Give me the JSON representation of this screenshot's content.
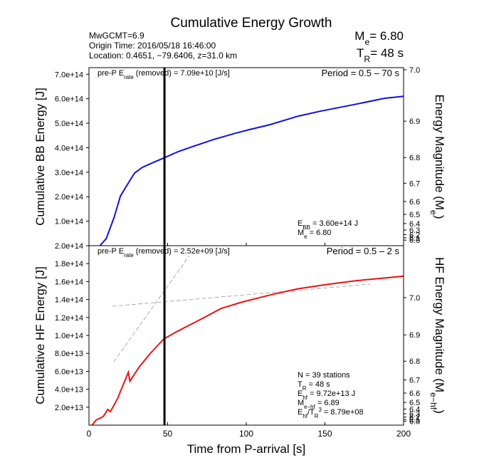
{
  "header": {
    "title": "Cumulative Energy Growth",
    "info": [
      "MwGCMT=6.9",
      "Origin Time: 2016/05/18 16:46:00",
      "Location: 0.4651, −79.6406, z=31.0 km"
    ],
    "me": [
      "M",
      {
        "sub": "e"
      },
      "= 6.80"
    ],
    "tr": [
      "T",
      {
        "sub": "R"
      },
      "= ",
      {
        "value": 48,
        "label": "48"
      },
      " s"
    ]
  },
  "chart_data": [
    {
      "type": "line",
      "color": "#1010dd",
      "x": [
        7,
        11,
        16,
        20,
        25,
        29,
        34,
        41,
        47.5,
        56.6,
        65.6,
        79,
        93,
        102,
        115,
        133,
        147,
        170,
        188,
        200
      ],
      "values": [
        0,
        29000000000000.0,
        116000000000000.0,
        203000000000000.0,
        256000000000000.0,
        297000000000000.0,
        320000000000000.0,
        340000000000000.0,
        358000000000000.0,
        384000000000000.0,
        404000000000000.0,
        433000000000000.0,
        459000000000000.0,
        474000000000000.0,
        494000000000000.0,
        529000000000000.0,
        549000000000000.0,
        578000000000000.0,
        602000000000000.0,
        610000000000000.0
      ],
      "xlim": [
        0,
        200
      ],
      "xticks": [
        0,
        50,
        100,
        150,
        200
      ],
      "ylim": [
        0,
        727000000000000.0
      ],
      "yticks": [
        {
          "value": 100000000000000.0,
          "label": "1.0e+14"
        },
        {
          "value": 200000000000000.0,
          "label": "2.0e+14"
        },
        {
          "value": 300000000000000.0,
          "label": "3.0e+14"
        },
        {
          "value": 400000000000000.0,
          "label": "4.0e+14"
        },
        {
          "value": 500000000000000.0,
          "label": "5.0e+14"
        },
        {
          "value": 600000000000000.0,
          "label": "6.0e+14"
        },
        {
          "value": 700000000000000.0,
          "label": "7.0e+14"
        }
      ],
      "y2scale": "magnitude",
      "y2ticks": [
        {
          "value": 6,
          "label": "6.0"
        },
        6.1,
        6.2,
        6.3,
        6.4,
        6.5,
        6.6,
        6.7,
        6.8,
        6.9,
        {
          "value": 7,
          "label": "7.0"
        }
      ],
      "ylabel": "Cumulative BB Energy [J]",
      "y2label": [
        "Energy Magnitude (M",
        {
          "sub": "e"
        },
        ")"
      ],
      "prep": [
        "pre-P E",
        {
          "sub": "rate"
        },
        " (removed) = 7.09e+10 [J/s]"
      ],
      "period": "Period = 0.5 – 70 s",
      "notes": [
        [
          "E",
          {
            "sub": "BB"
          },
          " = ",
          {
            "value": 360000000000000.0,
            "label": "3.60e+14"
          },
          " J"
        ],
        [
          "M",
          {
            "sub": "e"
          },
          " = ",
          {
            "value": 6.8,
            "label": "6.80"
          }
        ]
      ]
    },
    {
      "type": "line",
      "color": "#ee1111",
      "x": [
        2,
        4.5,
        9,
        12,
        13.6,
        18,
        25,
        26,
        32,
        38.5,
        47.5,
        56.6,
        70,
        84,
        97,
        115,
        133,
        152,
        170,
        188,
        200
      ],
      "values": [
        0,
        5600000000000.0,
        9500000000000.0,
        17500000000000.0,
        15000000000000.0,
        29000000000000.0,
        59000000000000.0,
        49000000000000.0,
        65000000000000.0,
        79000000000000.0,
        96000000000000.0,
        105000000000000.0,
        117000000000000.0,
        130000000000000.0,
        137000000000000.0,
        145000000000000.0,
        152000000000000.0,
        157000000000000.0,
        161000000000000.0,
        164000000000000.0,
        166000000000000.0
      ],
      "xlim": [
        0,
        200
      ],
      "xticks": [
        0,
        50,
        100,
        150,
        200
      ],
      "xlabel": "Time from P-arrival [s]",
      "ylim": [
        0,
        200000000000000.0
      ],
      "yticks": [
        {
          "value": 20000000000000.0,
          "label": "2.0e+13"
        },
        {
          "value": 40000000000000.0,
          "label": "4.0e+13"
        },
        {
          "value": 60000000000000.0,
          "label": "6.0e+13"
        },
        {
          "value": 80000000000000.0,
          "label": "8.0e+13"
        },
        {
          "value": 100000000000000.0,
          "label": "1.0e+14"
        },
        {
          "value": 120000000000000.0,
          "label": "1.2e+14"
        },
        {
          "value": 140000000000000.0,
          "label": "1.4e+14"
        },
        {
          "value": 160000000000000.0,
          "label": "1.6e+14"
        },
        {
          "value": 180000000000000.0,
          "label": "1.8e+14"
        },
        {
          "value": 200000000000000.0,
          "label": "2.0e+14"
        }
      ],
      "y2scale": "magnitude",
      "y2ticks": [
        {
          "value": 6,
          "label": "6.0"
        },
        6.1,
        6.2,
        6.3,
        6.4,
        6.5,
        6.6,
        6.7,
        6.8,
        6.9,
        {
          "value": 7,
          "label": "7.0"
        }
      ],
      "ylabel": "Cumulative HF Energy [J]",
      "y2label": [
        "HF Energy Magnitude (M",
        {
          "sub": "e−hf"
        },
        ")"
      ],
      "prep": [
        "pre-P E",
        {
          "sub": "rate"
        },
        " (removed) = 2.52e+09 [J/s]"
      ],
      "period": "Period = 0.5 – 2 s",
      "notes": [
        [
          "N = 39 stations"
        ],
        [
          "T",
          {
            "sub": "R"
          },
          " = 48  s"
        ],
        [
          "E",
          {
            "sub": "hf"
          },
          " = ",
          {
            "value": 97200000000000.0,
            "label": "9.72e+13"
          },
          " J"
        ],
        [
          "M",
          {
            "sub": "e−hf"
          },
          " = ",
          {
            "value": 6.89,
            "label": "6.89"
          }
        ],
        [
          "E",
          {
            "sub": "hf"
          },
          "/T",
          {
            "sub": "R"
          },
          {
            "sup": "3"
          },
          " =  8.79e+08"
        ]
      ]
    }
  ]
}
